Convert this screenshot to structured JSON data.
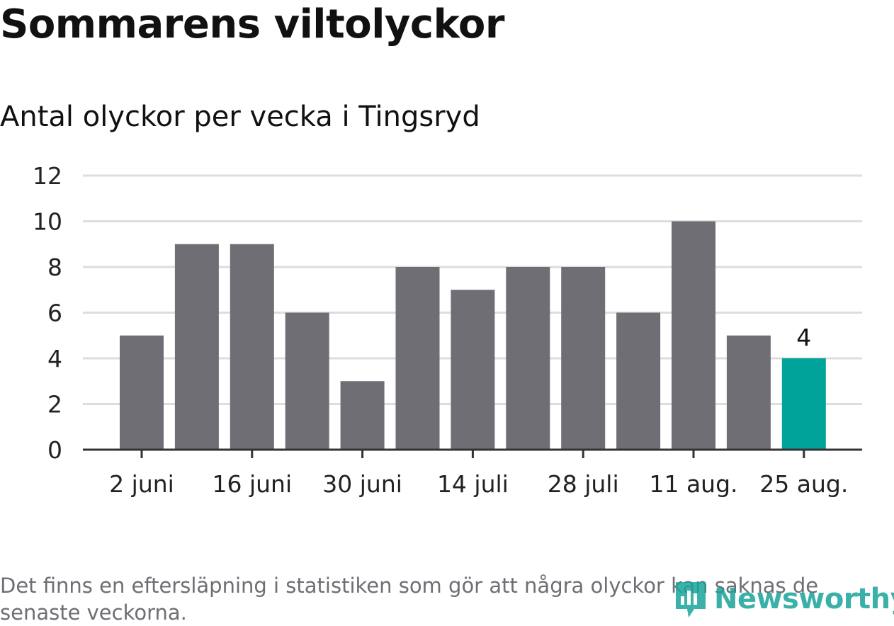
{
  "title": "Sommarens viltolyckor",
  "subtitle": "Antal olyckor per vecka i Tingsryd",
  "footnote": "Det finns en eftersläpning i statistiken som gör att några olyckor kan saknas de senaste veckorna.",
  "logo_text": "Newsworthy",
  "colors": {
    "bar": "#6f6e75",
    "highlight": "#00a39a",
    "grid": "#dddddd",
    "axis": "#333333"
  },
  "chart_data": {
    "type": "bar",
    "title": "Sommarens viltolyckor",
    "subtitle": "Antal olyckor per vecka i Tingsryd",
    "values": [
      5,
      9,
      9,
      6,
      3,
      8,
      7,
      8,
      8,
      6,
      10,
      5,
      4
    ],
    "x_tick_labels": [
      "2 juni",
      "16 juni",
      "30 juni",
      "14 juli",
      "28 juli",
      "11 aug.",
      "25 aug."
    ],
    "y_ticks": [
      0,
      2,
      4,
      6,
      8,
      10,
      12
    ],
    "ylim": [
      0,
      12
    ],
    "highlight_index": 12,
    "data_label": "4",
    "grid": true
  }
}
